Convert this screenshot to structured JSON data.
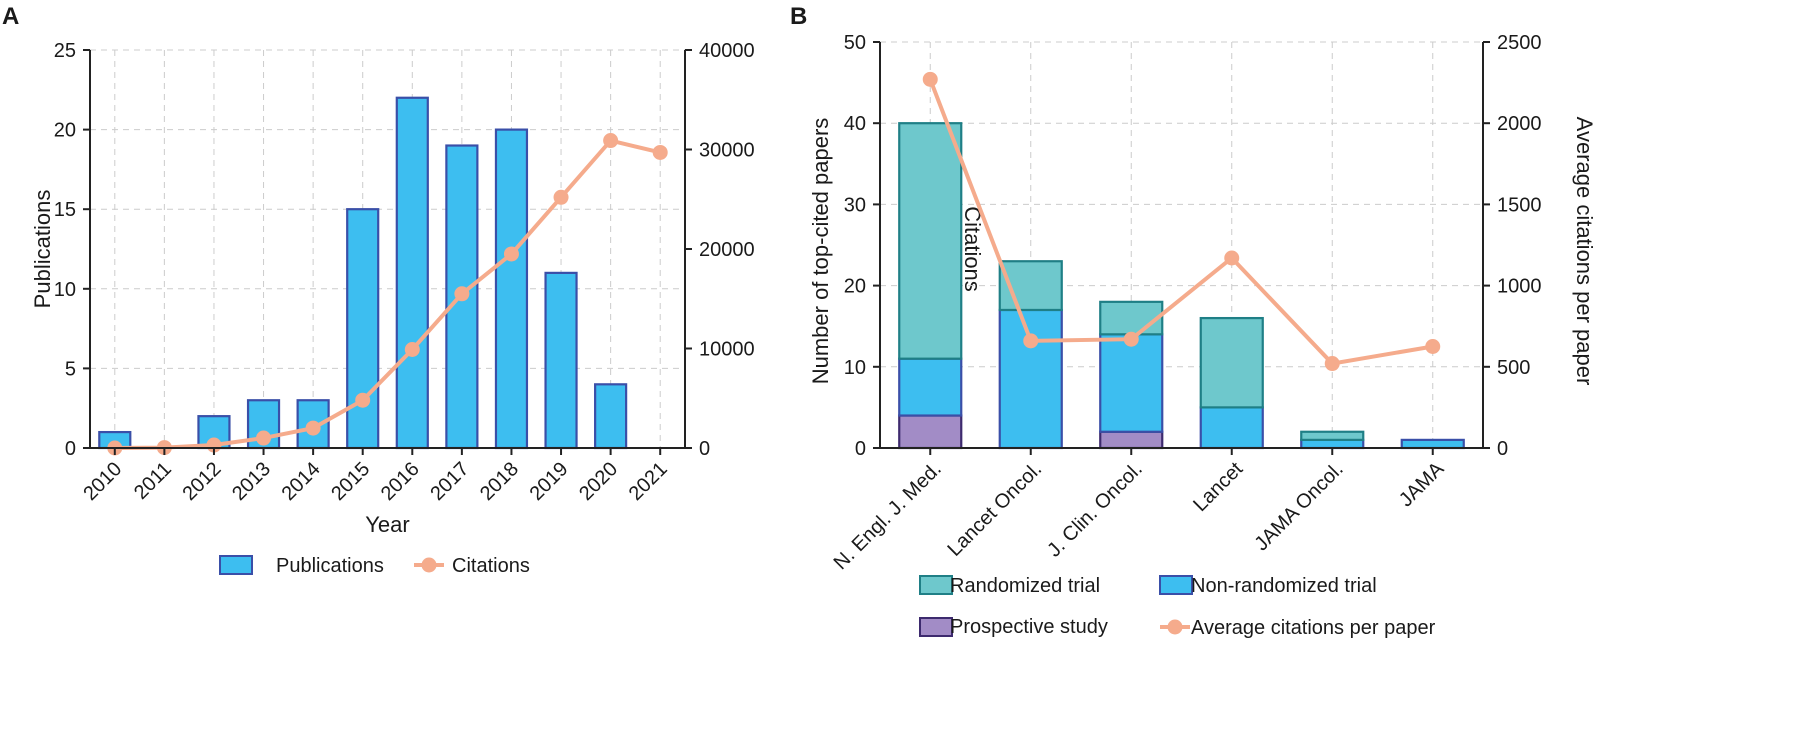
{
  "panels": {
    "a": {
      "label": "A"
    },
    "b": {
      "label": "B"
    }
  },
  "chart_data": [
    {
      "type": "bar",
      "title": "",
      "categories": [
        "2010",
        "2011",
        "2012",
        "2013",
        "2014",
        "2015",
        "2016",
        "2017",
        "2018",
        "2019",
        "2020",
        "2021"
      ],
      "series": [
        {
          "name": "Publications",
          "type": "bar",
          "axis": "left",
          "values": [
            1,
            0,
            2,
            3,
            3,
            15,
            22,
            19,
            20,
            11,
            4,
            0
          ]
        },
        {
          "name": "Citations",
          "type": "line",
          "axis": "right",
          "values": [
            0,
            40,
            300,
            1000,
            2000,
            4800,
            9900,
            15500,
            19500,
            25200,
            30900,
            29700
          ]
        }
      ],
      "xlabel": "Year",
      "ylabel": "Publications",
      "y2label": "Citations",
      "ylim": [
        0,
        25
      ],
      "y2lim": [
        0,
        40000
      ],
      "yticks": [
        0,
        5,
        10,
        15,
        20,
        25
      ],
      "y2ticks": [
        0,
        10000,
        20000,
        30000,
        40000
      ],
      "legend": [
        "Publications",
        "Citations"
      ],
      "legend_position": "bottom",
      "grid": true,
      "colors": {
        "bar_fill": "#3dbef0",
        "bar_stroke": "#3a4fa8",
        "line": "#f5ab8c"
      }
    },
    {
      "type": "bar",
      "stacked": true,
      "title": "",
      "categories": [
        "N. Engl. J. Med.",
        "Lancet Oncol.",
        "J. Clin. Oncol.",
        "Lancet",
        "JAMA Oncol.",
        "JAMA"
      ],
      "series": [
        {
          "name": "Prospective study",
          "type": "bar",
          "axis": "left",
          "values": [
            4,
            0,
            2,
            0,
            0,
            0
          ]
        },
        {
          "name": "Non-randomized trial",
          "type": "bar",
          "axis": "left",
          "values": [
            7,
            17,
            12,
            5,
            1,
            1
          ]
        },
        {
          "name": "Randomized trial",
          "type": "bar",
          "axis": "left",
          "values": [
            29,
            6,
            4,
            11,
            1,
            0
          ]
        },
        {
          "name": "Average citations per paper",
          "type": "line",
          "axis": "right",
          "values": [
            2270,
            660,
            670,
            1170,
            520,
            625
          ]
        }
      ],
      "xlabel": "",
      "ylabel": "Number of top-cited papers",
      "y2label": "Average citations per paper",
      "ylim": [
        0,
        50
      ],
      "y2lim": [
        0,
        2500
      ],
      "yticks": [
        0,
        10,
        20,
        30,
        40,
        50
      ],
      "y2ticks": [
        0,
        500,
        1000,
        1500,
        2000,
        2500
      ],
      "legend": [
        "Randomized trial",
        "Non-randomized trial",
        "Prospective study",
        "Average citations per paper"
      ],
      "legend_position": "bottom",
      "grid": true,
      "colors": {
        "randomized_fill": "#6ec8cc",
        "randomized_stroke": "#1f7f86",
        "nonrandom_fill": "#3dbef0",
        "nonrandom_stroke": "#3a4fa8",
        "prospective_fill": "#a28cc6",
        "prospective_stroke": "#3d2a6e",
        "line": "#f5ab8c"
      }
    }
  ]
}
